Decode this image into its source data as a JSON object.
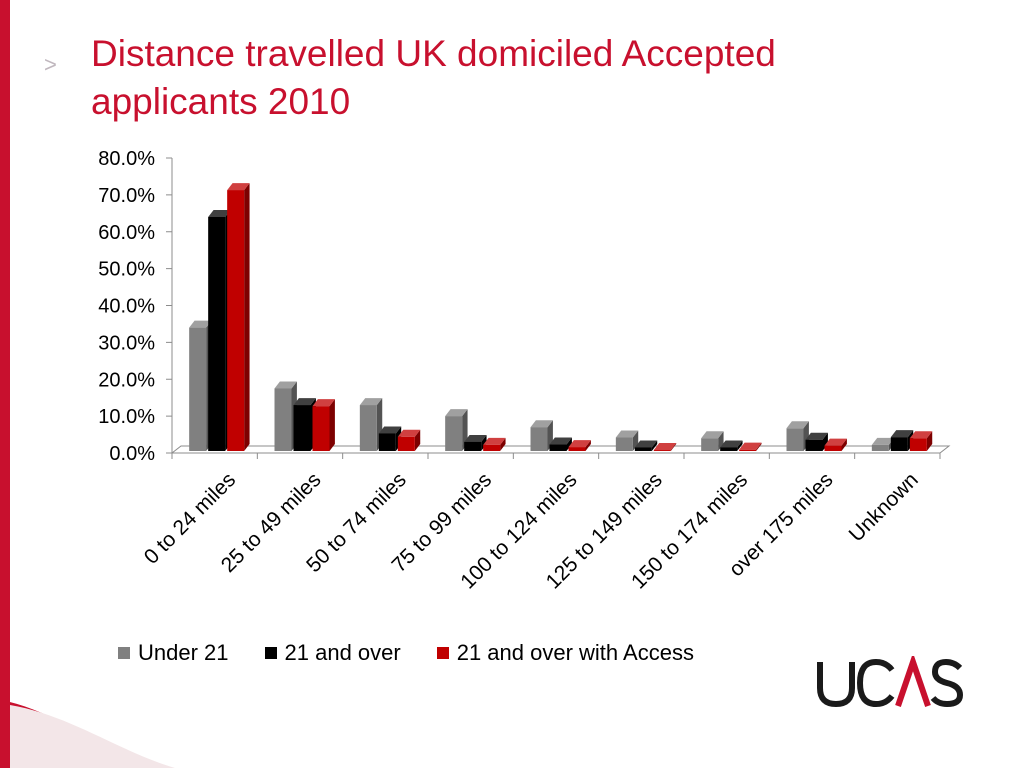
{
  "slide": {
    "title": "Distance travelled UK domiciled Accepted applicants 2010",
    "bullet_glyph": ">",
    "logo_text": "UCAS",
    "accent_color": "#c8102e"
  },
  "chart_data": {
    "type": "bar",
    "title": "",
    "xlabel": "",
    "ylabel": "",
    "ylim": [
      0,
      80
    ],
    "y_ticks": [
      "0.0%",
      "10.0%",
      "20.0%",
      "30.0%",
      "40.0%",
      "50.0%",
      "60.0%",
      "70.0%",
      "80.0%"
    ],
    "y_unit": "%",
    "categories": [
      "0  to 24 miles",
      "25 to 49 miles",
      "50 to 74 miles",
      "75 to 99 miles",
      "100 to 124 miles",
      "125 to 149 miles",
      "150 to 174 miles",
      "over 175 miles",
      "Unknown"
    ],
    "series": [
      {
        "name": "Under 21",
        "color": "#808080",
        "values": [
          34.0,
          17.5,
          13.0,
          10.0,
          7.0,
          4.2,
          4.0,
          6.7,
          2.2
        ]
      },
      {
        "name": "21 and over",
        "color": "#000000",
        "values": [
          64.0,
          13.0,
          5.3,
          3.0,
          2.3,
          1.5,
          1.5,
          3.6,
          4.3
        ]
      },
      {
        "name": "21 and over with Access",
        "color": "#c00000",
        "values": [
          71.3,
          12.7,
          4.4,
          2.2,
          1.6,
          0.8,
          0.9,
          2.0,
          4.0
        ]
      }
    ],
    "grid": false,
    "legend_position": "bottom",
    "style": "3d-clustered-column"
  }
}
